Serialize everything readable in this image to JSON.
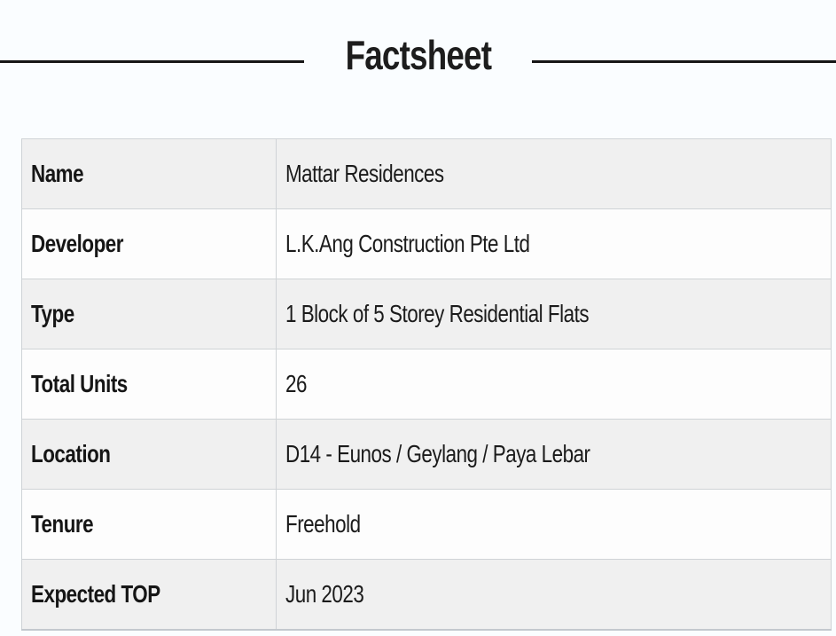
{
  "header": {
    "title": "Factsheet"
  },
  "table": {
    "rows": [
      {
        "label": "Name",
        "value": "Mattar Residences"
      },
      {
        "label": "Developer",
        "value": "L.K.Ang Construction Pte Ltd"
      },
      {
        "label": "Type",
        "value": "1 Block of 5 Storey Residential Flats"
      },
      {
        "label": "Total Units",
        "value": "26"
      },
      {
        "label": "Location",
        "value": "D14 - Eunos / Geylang / Paya Lebar"
      },
      {
        "label": "Tenure",
        "value": "Freehold"
      },
      {
        "label": "Expected TOP",
        "value": "Jun 2023"
      }
    ]
  },
  "colors": {
    "page_bg": "#fafdff",
    "row_shaded_bg": "#f0f0f0",
    "row_plain_bg": "#fdfdfd",
    "table_border": "#cfd3d6",
    "text": "#1b1b1b",
    "title_rule": "#161616"
  }
}
